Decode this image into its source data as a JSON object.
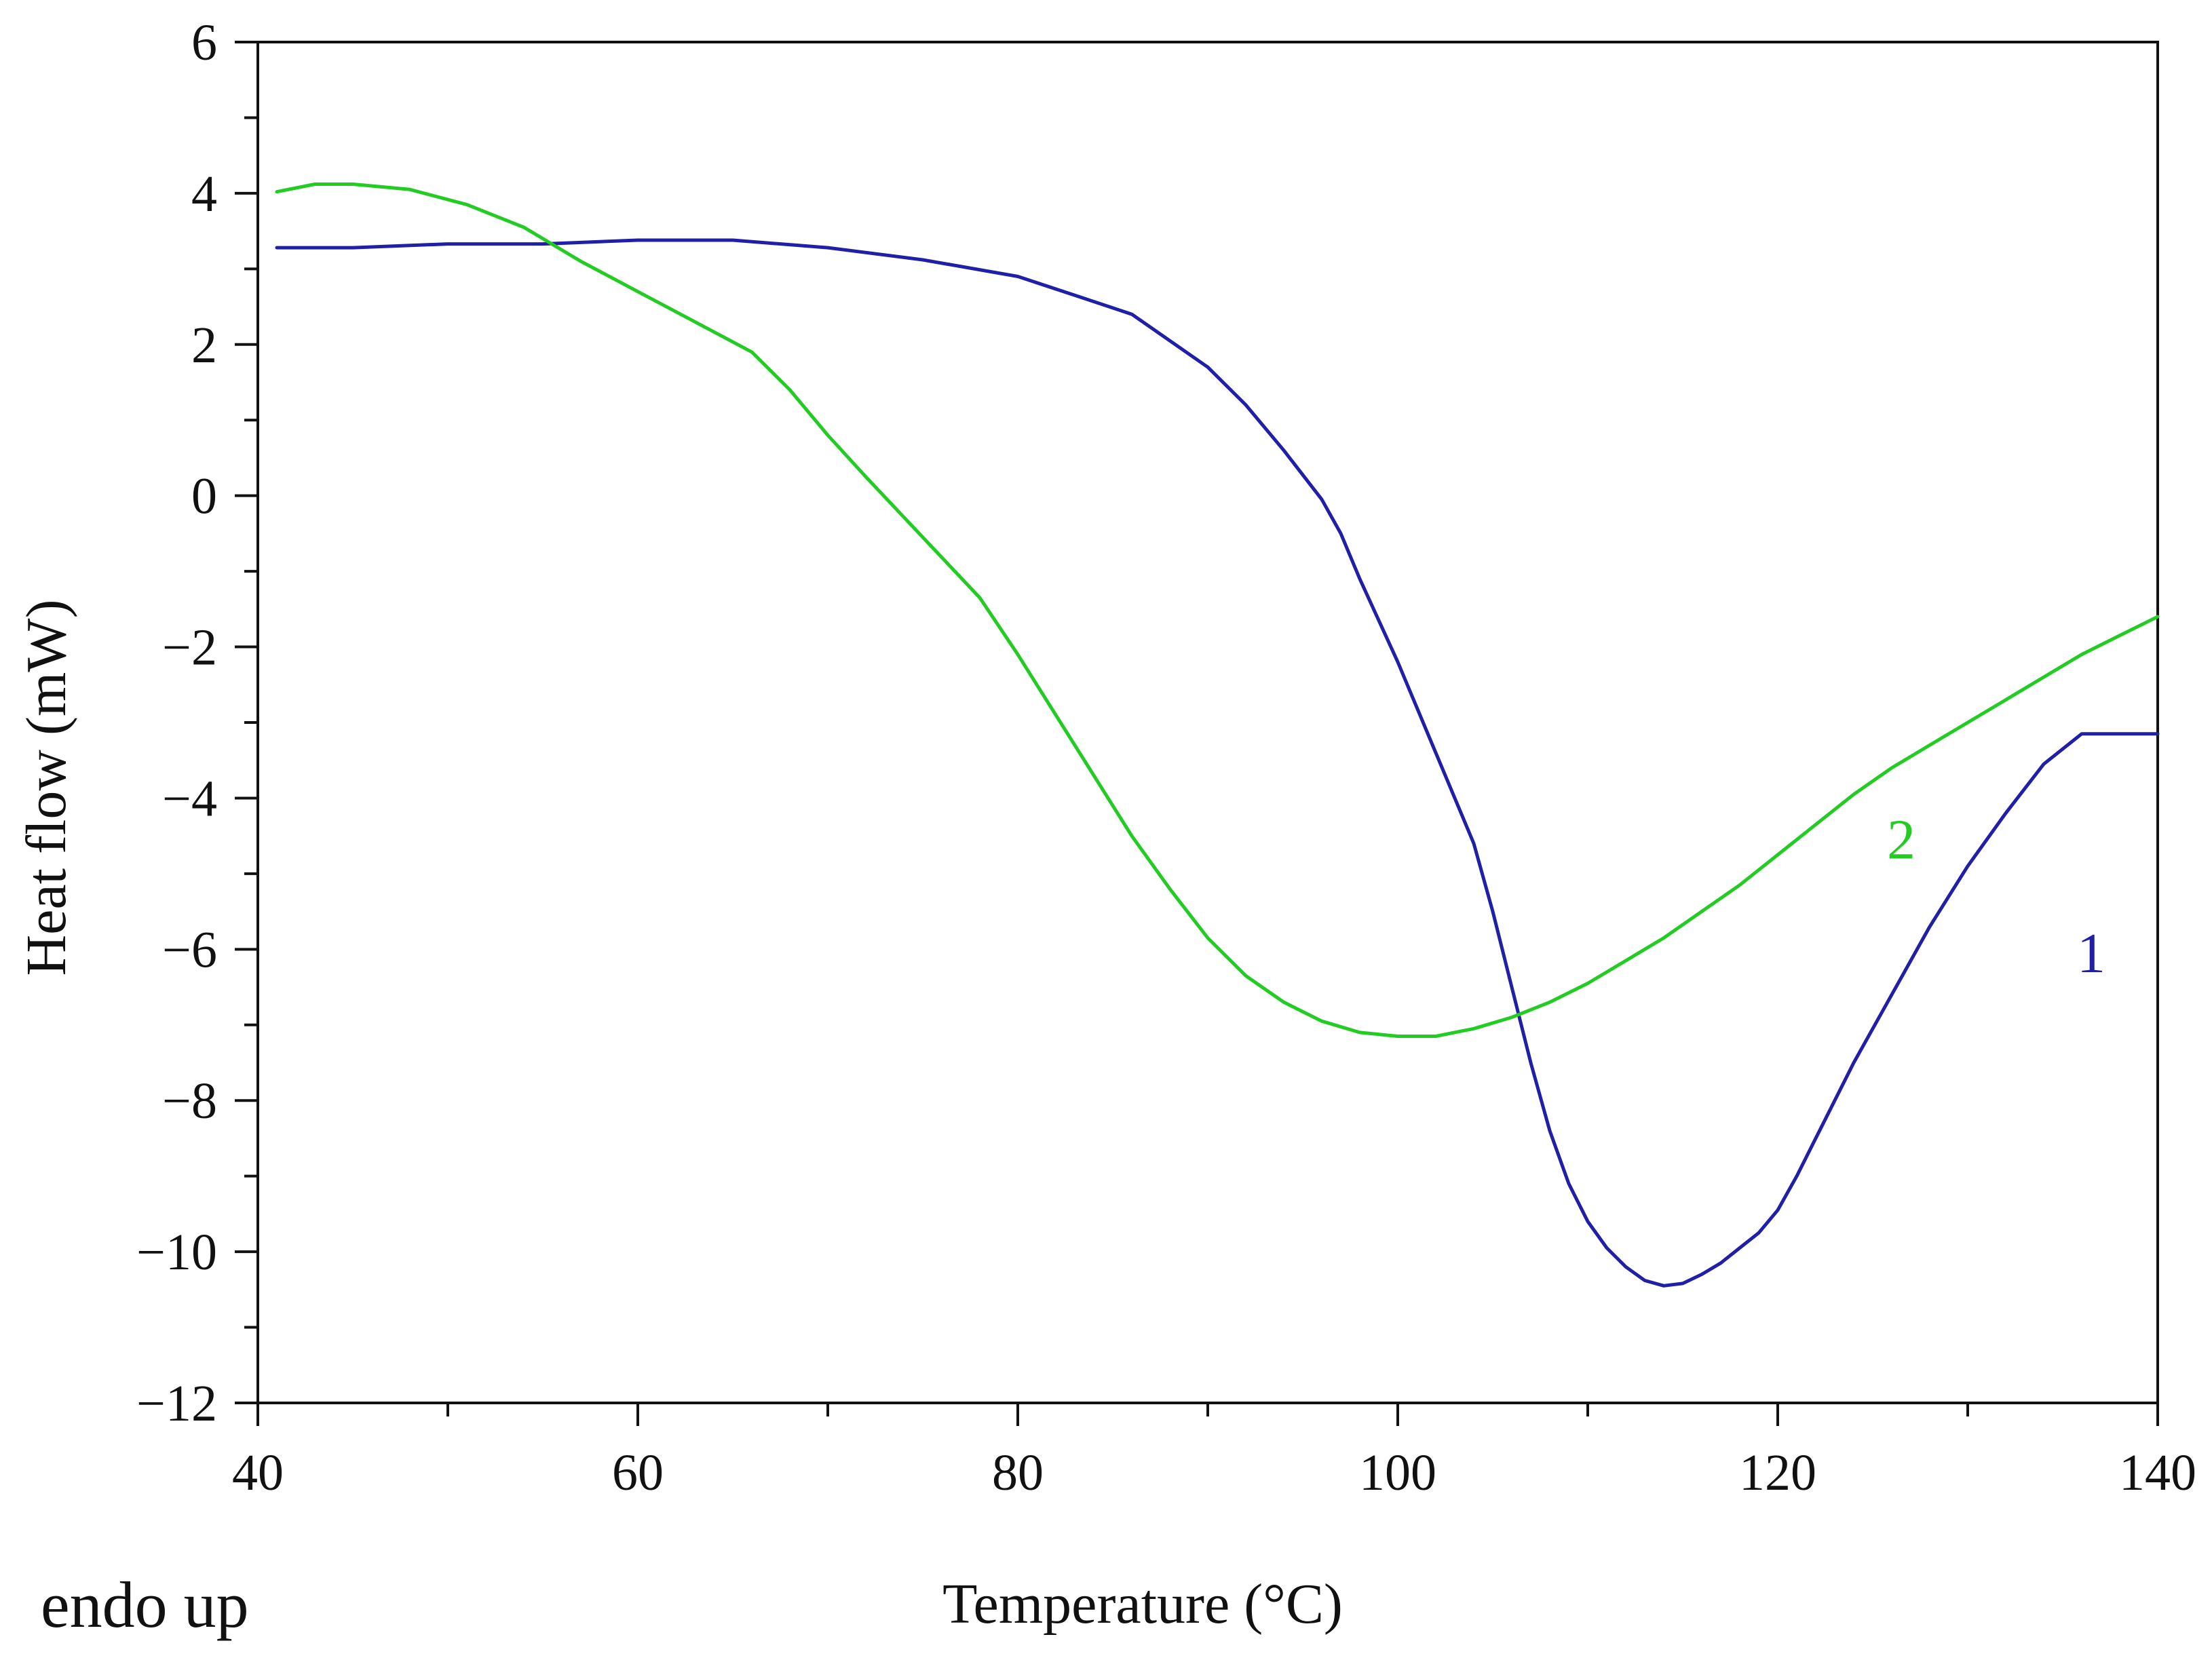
{
  "chart_data": {
    "type": "line",
    "title": "",
    "xlabel": "Temperature (°C)",
    "ylabel": "Heat flow (mW)",
    "xlim": [
      40,
      140
    ],
    "ylim": [
      -12,
      6
    ],
    "x_ticks": [
      40,
      60,
      80,
      100,
      120,
      140
    ],
    "y_ticks": [
      6,
      4,
      2,
      0,
      -2,
      -4,
      -6,
      -8,
      -10,
      -12
    ],
    "x_tick_labels": [
      "40",
      "60",
      "80",
      "100",
      "120",
      "140"
    ],
    "y_tick_labels": [
      "6",
      "4",
      "2",
      "0",
      "−2",
      "−4",
      "−6",
      "−8",
      "−10",
      "−12"
    ],
    "grid": false,
    "note": "endo up",
    "series": [
      {
        "name": "1",
        "label": "1",
        "color": "#1f1fa8",
        "label_at": [
          136.5,
          -6.3
        ],
        "x": [
          41,
          45,
          50,
          55,
          60,
          65,
          70,
          75,
          80,
          83,
          86,
          88,
          90,
          92,
          94,
          96,
          97,
          98,
          100,
          102,
          104,
          105,
          106,
          107,
          108,
          109,
          110,
          111,
          112,
          113,
          114,
          115,
          116,
          117,
          118,
          119,
          120,
          121,
          122,
          124,
          126,
          128,
          130,
          132,
          134,
          136,
          138,
          140
        ],
        "y": [
          3.28,
          3.28,
          3.33,
          3.33,
          3.38,
          3.38,
          3.28,
          3.12,
          2.9,
          2.65,
          2.4,
          2.05,
          1.7,
          1.2,
          0.6,
          -0.05,
          -0.5,
          -1.1,
          -2.2,
          -3.4,
          -4.6,
          -5.5,
          -6.5,
          -7.5,
          -8.4,
          -9.1,
          -9.6,
          -9.95,
          -10.2,
          -10.38,
          -10.45,
          -10.42,
          -10.3,
          -10.15,
          -9.95,
          -9.75,
          -9.45,
          -9.0,
          -8.5,
          -7.5,
          -6.6,
          -5.7,
          -4.9,
          -4.2,
          -3.55,
          -3.15,
          -3.15,
          -3.15
        ]
      },
      {
        "name": "2",
        "label": "2",
        "color": "#22cc22",
        "label_at": [
          126.5,
          -4.8
        ],
        "x": [
          41,
          43,
          45,
          48,
          51,
          54,
          57,
          60,
          63,
          66,
          68,
          70,
          72,
          75,
          78,
          80,
          82,
          84,
          86,
          88,
          90,
          92,
          94,
          96,
          98,
          100,
          102,
          104,
          106,
          108,
          110,
          112,
          114,
          116,
          118,
          120,
          122,
          124,
          126,
          128,
          130,
          132,
          134,
          136,
          138,
          140
        ],
        "y": [
          4.02,
          4.12,
          4.12,
          4.05,
          3.85,
          3.55,
          3.1,
          2.7,
          2.3,
          1.9,
          1.4,
          0.8,
          0.25,
          -0.55,
          -1.35,
          -2.1,
          -2.9,
          -3.7,
          -4.5,
          -5.2,
          -5.85,
          -6.35,
          -6.7,
          -6.95,
          -7.1,
          -7.15,
          -7.15,
          -7.05,
          -6.9,
          -6.7,
          -6.45,
          -6.15,
          -5.85,
          -5.5,
          -5.15,
          -4.75,
          -4.35,
          -3.95,
          -3.6,
          -3.3,
          -3.0,
          -2.7,
          -2.4,
          -2.1,
          -1.85,
          -1.6
        ]
      }
    ]
  }
}
